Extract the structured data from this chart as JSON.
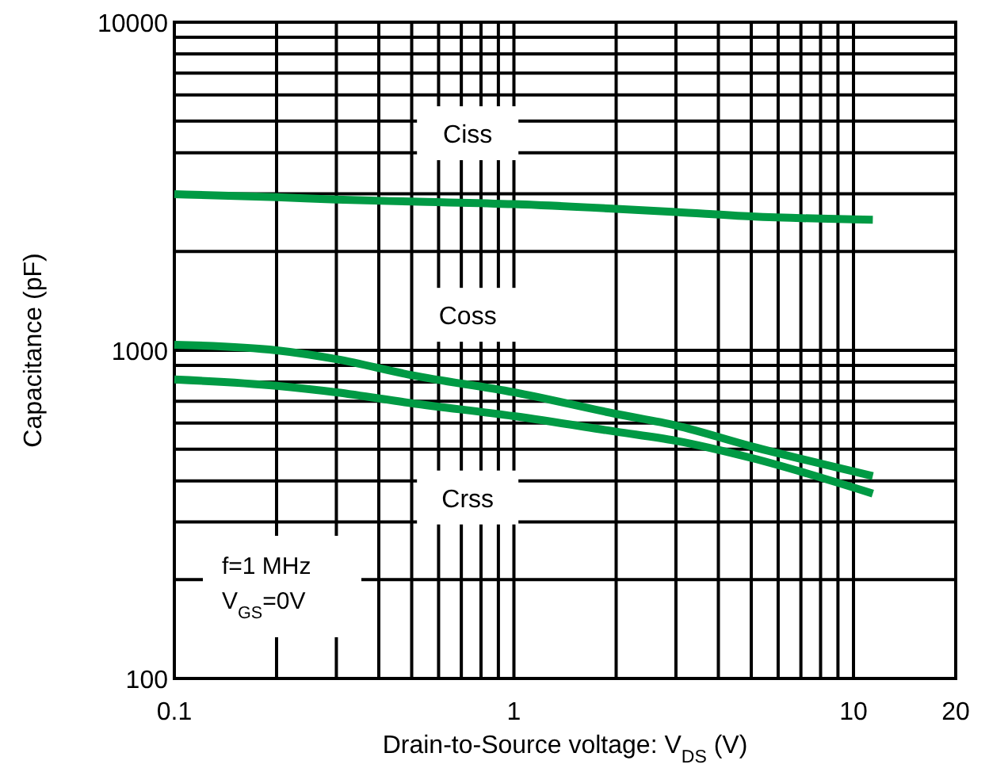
{
  "chart_data": {
    "type": "line",
    "xlabel": "Drain-to-Source voltage: V$_{DS}$ (V)",
    "ylabel": "Capacitance (pF)",
    "log": "xy",
    "grid": true,
    "marker": "none",
    "line_style": "solid",
    "xlim": [
      0.1,
      20
    ],
    "ylim": [
      100,
      10000
    ],
    "xticks": [
      0.1,
      {
        "value": 0.2,
        "label": null
      },
      {
        "value": 0.3,
        "label": null
      },
      {
        "value": 0.4,
        "label": null
      },
      {
        "value": 0.5,
        "label": null
      },
      {
        "value": 0.6,
        "label": null
      },
      {
        "value": 0.7,
        "label": null
      },
      {
        "value": 0.8,
        "label": null
      },
      {
        "value": 0.9,
        "label": null
      },
      1,
      {
        "value": 2,
        "label": null
      },
      {
        "value": 3,
        "label": null
      },
      {
        "value": 4,
        "label": null
      },
      {
        "value": 5,
        "label": null
      },
      {
        "value": 6,
        "label": null
      },
      {
        "value": 7,
        "label": null
      },
      {
        "value": 8,
        "label": null
      },
      {
        "value": 9,
        "label": null
      },
      10,
      20
    ],
    "yticks": [
      100,
      {
        "value": 200,
        "label": null
      },
      {
        "value": 300,
        "label": null
      },
      {
        "value": 400,
        "label": null
      },
      {
        "value": 500,
        "label": null
      },
      {
        "value": 600,
        "label": null
      },
      {
        "value": 700,
        "label": null
      },
      {
        "value": 800,
        "label": null
      },
      {
        "value": 900,
        "label": null
      },
      1000,
      {
        "value": 2000,
        "label": null
      },
      {
        "value": 3000,
        "label": null
      },
      {
        "value": 4000,
        "label": null
      },
      {
        "value": 5000,
        "label": null
      },
      {
        "value": 6000,
        "label": null
      },
      {
        "value": 7000,
        "label": null
      },
      {
        "value": 8000,
        "label": null
      },
      {
        "value": 9000,
        "label": null
      },
      10000
    ],
    "x": [
      0.1,
      0.2,
      0.3,
      0.5,
      1,
      2,
      3,
      5,
      11.4
    ],
    "series": [
      {
        "name": "Ciss",
        "color": "#009a44",
        "values": [
          2990,
          2930,
          2880,
          2840,
          2790,
          2700,
          2640,
          2560,
          2500
        ]
      },
      {
        "name": "Coss",
        "color": "#009a44",
        "values": [
          1040,
          1000,
          940,
          840,
          745,
          640,
          590,
          510,
          414
        ]
      },
      {
        "name": "Crss",
        "color": "#009a44",
        "values": [
          815,
          780,
          745,
          690,
          630,
          565,
          530,
          470,
          366
        ]
      }
    ],
    "annotations": [
      "f=1 MHz",
      "V$_{GS}$=0V"
    ]
  }
}
